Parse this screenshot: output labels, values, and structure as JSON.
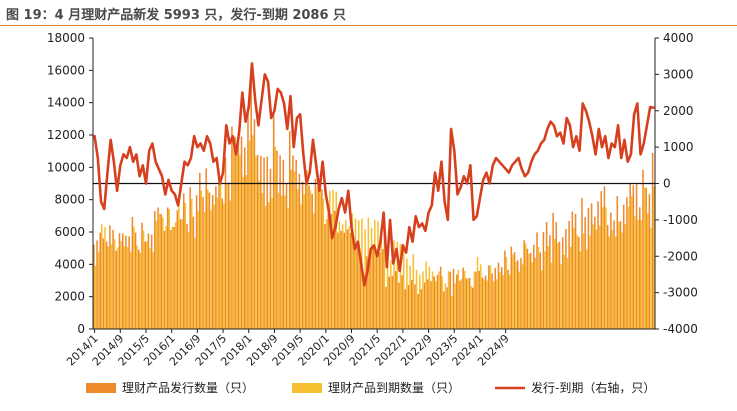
{
  "title": "图 19：4 月理财产品新发 5993 只，发行-到期 2086 只",
  "colors": {
    "issued": "#ee8a2b",
    "matured": "#f7c033",
    "net": "#d6401f",
    "rule": "#d97c2b"
  },
  "chart_data": {
    "type": "bar",
    "start_month": "2014/1",
    "end_month": "2025/4",
    "x_tick_labels": [
      "2014/1",
      "2014/9",
      "2015/5",
      "2016/1",
      "2016/9",
      "2017/5",
      "2018/1",
      "2018/9",
      "2019/5",
      "2020/1",
      "2020/9",
      "2021/5",
      "2022/1",
      "2022/9",
      "2023/5",
      "2024/1",
      "2024/9"
    ],
    "ylim_left": [
      0,
      18000
    ],
    "yticks_left": [
      "0",
      "2000",
      "4000",
      "6000",
      "8000",
      "10000",
      "12000",
      "14000",
      "16000",
      "18000"
    ],
    "ylim_right": [
      -4000,
      4000
    ],
    "yticks_right": [
      "-4000",
      "-3000",
      "-2000",
      "-1000",
      "0",
      "1000",
      "2000",
      "3000",
      "4000"
    ],
    "legend": [
      "理财产品发行数量（只）",
      "理财产品到期数量（只）",
      "发行-到期（右轴，只）"
    ],
    "net_series": [
      1300,
      700,
      -500,
      -700,
      300,
      1200,
      600,
      -200,
      500,
      800,
      700,
      1000,
      600,
      800,
      200,
      500,
      0,
      900,
      1100,
      600,
      400,
      200,
      -300,
      100,
      -200,
      -300,
      -600,
      0,
      600,
      500,
      700,
      1300,
      1000,
      1100,
      900,
      1300,
      1100,
      600,
      700,
      0,
      300,
      1600,
      1100,
      1300,
      800,
      1400,
      2500,
      1700,
      2100,
      3300,
      2300,
      1600,
      2300,
      3000,
      2800,
      1800,
      2000,
      2600,
      2500,
      2200,
      1500,
      2400,
      1000,
      1800,
      1900,
      800,
      0,
      300,
      1200,
      500,
      -200,
      600,
      -300,
      -800,
      -1500,
      -1200,
      -700,
      -400,
      -800,
      -200,
      -1200,
      -1800,
      -1600,
      -2200,
      -2800,
      -2400,
      -1800,
      -1700,
      -2000,
      -1600,
      -800,
      -2300,
      -1000,
      -2200,
      -1800,
      -2400,
      -1700,
      -1900,
      -1200,
      -1600,
      -900,
      -1200,
      -1100,
      -1300,
      -800,
      -600,
      300,
      -200,
      600,
      -500,
      -1000,
      1500,
      900,
      -300,
      -100,
      200,
      0,
      500,
      -1000,
      -900,
      -400,
      100,
      300,
      0,
      500,
      700,
      600,
      500,
      400,
      300,
      500,
      600,
      700,
      400,
      200,
      300,
      600,
      800,
      900,
      1100,
      1200,
      1500,
      1700,
      1600,
      1300,
      1400,
      1100,
      1800,
      1600,
      1000,
      1300,
      900,
      2200,
      2000,
      1700,
      1300,
      800,
      1500,
      1000,
      1300,
      700,
      1100,
      1000,
      1600,
      700,
      1200,
      600,
      800,
      1900,
      2200,
      800,
      1100,
      1600,
      2100,
      2086
    ]
  }
}
